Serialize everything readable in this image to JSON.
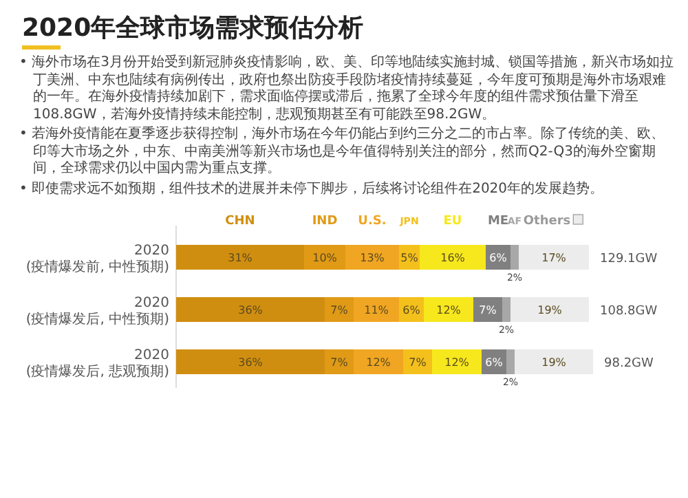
{
  "chart_data": {
    "type": "bar",
    "orientation": "horizontal",
    "stacked": true,
    "legend": "top",
    "title": "2020年全球市场需求预估分析",
    "annotations": [
      "• 海外市场在3月份开始受到新冠肺炎疫情影响，欧、美、印等地陆续实施封城、锁国等措施，新兴市场如拉丁美洲、中东也陆续有病例传出，政府也祭出防疫手段防堵疫情持续蔓延，今年度可预期是海外市场艰难的一年。在海外疫情持续加剧下，需求面临停摆或滞后，拖累了全球今年度的组件需求预估量下滑至108.8GW，若海外疫情持续未能控制，悲观预期甚至有可能跌至98.2GW。",
      "• 若海外疫情能在夏季逐步获得控制，海外市场在今年仍能占到约三分之二的市占率。除了传统的美、欧、印等大市场之外，中东、中南美洲等新兴市场也是今年值得特别关注的部分，然而Q2-Q3的海外空窗期间，全球需求仍以中国内需为重点支撑。",
      "• 即使需求远不如预期，组件技术的进展并未停下脚步，后续将讨论组件在2020年的发展趋势。",
      "129.1GW",
      "108.8GW",
      "98.2GW"
    ],
    "categories": [
      "2020(疫情爆发前, 中性预期)",
      "2020(疫情爆发后, 中性预期)",
      "2020(疫情爆发后, 悲观预期)"
    ],
    "series": [
      {
        "name": "CHN",
        "color": "#d08e10",
        "values": [
          31,
          36,
          36
        ],
        "value_labels": [
          "31%",
          "36%",
          "36%"
        ]
      },
      {
        "name": "IND",
        "color": "#e09a16",
        "values": [
          10,
          7,
          7
        ],
        "value_labels": [
          "10%",
          "7%",
          "7%"
        ]
      },
      {
        "name": "U.S.",
        "color": "#f0a622",
        "values": [
          13,
          11,
          12
        ],
        "value_labels": [
          "13%",
          "11%",
          "12%"
        ]
      },
      {
        "name": "JPN",
        "color": "#f4c01c",
        "values": [
          5,
          6,
          7
        ],
        "value_labels": [
          "5%",
          "6%",
          "7%"
        ]
      },
      {
        "name": "EU",
        "color": "#f6e81c",
        "values": [
          16,
          12,
          12
        ],
        "value_labels": [
          "16%",
          "12%",
          "12%"
        ]
      },
      {
        "name": "ME",
        "color": "#808080",
        "values": [
          6,
          7,
          6
        ],
        "value_labels": [
          "6%",
          "7%",
          "6%"
        ]
      },
      {
        "name": "AF",
        "color": "#a8a8a8",
        "values": [
          2,
          2,
          2
        ],
        "value_labels": [
          "2%",
          "2%",
          "2%"
        ]
      },
      {
        "name": "Others",
        "color": "#ececec",
        "values": [
          17,
          19,
          19
        ],
        "value_labels": [
          "17%",
          "19%",
          "19%"
        ]
      }
    ]
  }
}
